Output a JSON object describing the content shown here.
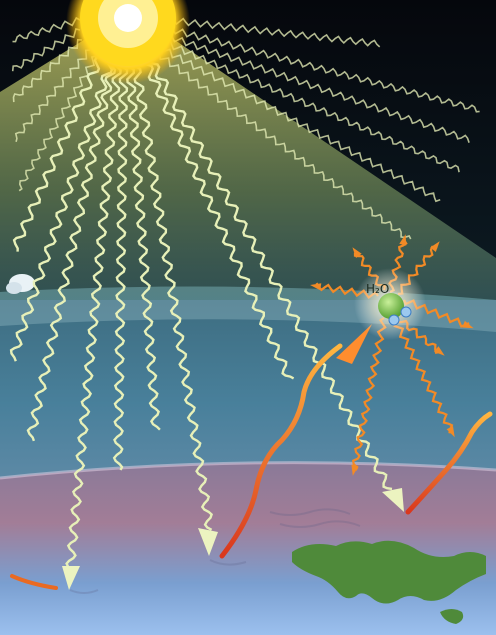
{
  "molecule": {
    "label": "H₂O"
  },
  "colors": {
    "side_bar": "#5a8ff0",
    "sky_top": "#05070c",
    "sun_core": "#fffbe0",
    "sun_glow": "#ffd21f",
    "sunlight": "#e7f0b8",
    "infrared": "#f07a1c",
    "land": "#4f8a3a",
    "molecule_oxygen": "#7cc243",
    "molecule_hydrogen": "#9cc9ef"
  }
}
